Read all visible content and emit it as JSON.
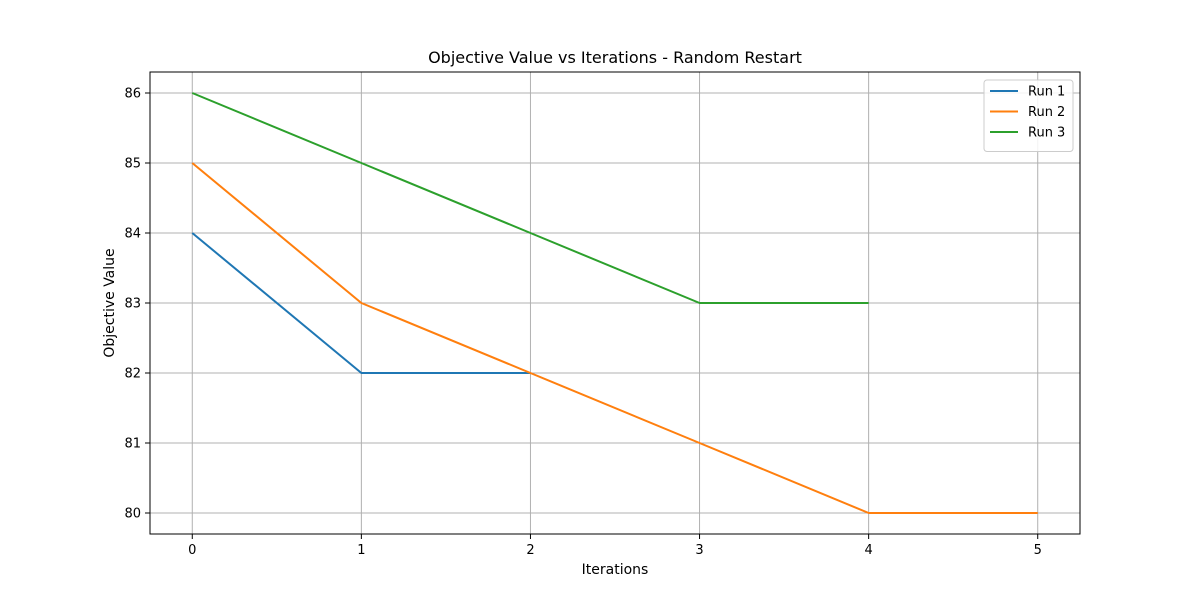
{
  "chart_data": {
    "type": "line",
    "title": "Objective Value vs Iterations - Random Restart",
    "xlabel": "Iterations",
    "ylabel": "Objective Value",
    "xlim": [
      -0.25,
      5.25
    ],
    "ylim": [
      79.7,
      86.3
    ],
    "xticks": [
      0,
      1,
      2,
      3,
      4,
      5
    ],
    "yticks": [
      80,
      81,
      82,
      83,
      84,
      85,
      86
    ],
    "grid": true,
    "legend_position": "top-right",
    "series": [
      {
        "name": "Run 1",
        "color": "#1f77b4",
        "x": [
          0,
          1,
          2
        ],
        "y": [
          84,
          82,
          82
        ]
      },
      {
        "name": "Run 2",
        "color": "#ff7f0e",
        "x": [
          0,
          1,
          2,
          3,
          4,
          5
        ],
        "y": [
          85,
          83,
          82,
          81,
          80,
          80
        ]
      },
      {
        "name": "Run 3",
        "color": "#2ca02c",
        "x": [
          0,
          1,
          2,
          3,
          4
        ],
        "y": [
          86,
          85,
          84,
          83,
          83
        ]
      }
    ]
  }
}
